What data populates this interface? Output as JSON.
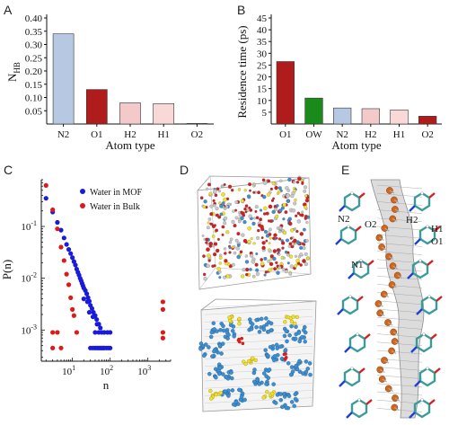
{
  "panels": {
    "a": "A",
    "b": "B",
    "c": "C",
    "d": "D",
    "e": "E"
  },
  "chart_data": [
    {
      "id": "A",
      "type": "bar",
      "categories": [
        "N2",
        "O1",
        "H2",
        "H1",
        "O2"
      ],
      "values": [
        0.34,
        0.13,
        0.08,
        0.077,
        0.002
      ],
      "colors": [
        "#b7c9e2",
        "#b01c1c",
        "#f4c9c9",
        "#f9d8d8",
        "#b01c1c"
      ],
      "xlabel": "Atom type",
      "ylabel": "N",
      "ylabel_sub": "HB",
      "ylim": [
        0,
        0.4
      ],
      "yticks": [
        "0.05",
        "0.10",
        "0.15",
        "0.20",
        "0.25",
        "0.30",
        "0.35",
        "0.40"
      ],
      "grid": false
    },
    {
      "id": "B",
      "type": "bar",
      "categories": [
        "O1",
        "OW",
        "N2",
        "H2",
        "H1",
        "O2"
      ],
      "values": [
        26.5,
        11.0,
        6.8,
        6.5,
        6.0,
        3.3
      ],
      "colors": [
        "#b01c1c",
        "#1a8a1a",
        "#b7c9e2",
        "#f4c9c9",
        "#f9d8d8",
        "#b01c1c"
      ],
      "xlabel": "Atom type",
      "ylabel": "Residence time (ps)",
      "ylim": [
        0,
        45
      ],
      "yticks": [
        "5",
        "10",
        "15",
        "20",
        "25",
        "30",
        "35",
        "40",
        "45"
      ],
      "grid": false
    },
    {
      "id": "C",
      "type": "scatter",
      "xscale": "log",
      "yscale": "log",
      "xlabel": "n",
      "ylabel": "P(n)",
      "xticks": [
        "10",
        "10",
        "10"
      ],
      "xtick_exps": [
        "1",
        "2",
        "3"
      ],
      "yticks": [
        "10",
        "10",
        "10"
      ],
      "ytick_exps": [
        "-1",
        "-2",
        "-3"
      ],
      "xlim": [
        1.5,
        4000
      ],
      "ylim": [
        0.00025,
        0.8
      ],
      "legend_position": "top-right",
      "series": [
        {
          "name": "Water in MOF",
          "color": "#1a1adb",
          "points": [
            [
              2,
              0.35
            ],
            [
              3,
              0.19
            ],
            [
              4,
              0.12
            ],
            [
              5,
              0.085
            ],
            [
              6,
              0.06
            ],
            [
              7,
              0.045
            ],
            [
              8,
              0.036
            ],
            [
              9,
              0.03
            ],
            [
              10,
              0.025
            ],
            [
              11,
              0.021
            ],
            [
              12,
              0.018
            ],
            [
              13,
              0.015
            ],
            [
              14,
              0.013
            ],
            [
              15,
              0.0115
            ],
            [
              16,
              0.01
            ],
            [
              17,
              0.009
            ],
            [
              18,
              0.008
            ],
            [
              19,
              0.0072
            ],
            [
              20,
              0.0065
            ],
            [
              22,
              0.0058
            ],
            [
              24,
              0.005
            ],
            [
              26,
              0.0042
            ],
            [
              28,
              0.0036
            ],
            [
              30,
              0.003
            ],
            [
              33,
              0.0026
            ],
            [
              36,
              0.0022
            ],
            [
              40,
              0.0019
            ],
            [
              44,
              0.0016
            ],
            [
              50,
              0.0013
            ],
            [
              55,
              0.0011
            ],
            [
              60,
              0.0009
            ],
            [
              20,
              0.004
            ],
            [
              25,
              0.0035
            ],
            [
              35,
              0.0018
            ],
            [
              45,
              0.0013
            ],
            [
              28,
              0.0022
            ],
            [
              30,
              0.00045
            ],
            [
              35,
              0.00045
            ],
            [
              40,
              0.00045
            ],
            [
              45,
              0.00045
            ],
            [
              50,
              0.00045
            ],
            [
              55,
              0.00045
            ],
            [
              60,
              0.00045
            ],
            [
              65,
              0.00045
            ],
            [
              70,
              0.00045
            ],
            [
              80,
              0.00045
            ],
            [
              90,
              0.00045
            ],
            [
              100,
              0.00045
            ],
            [
              40,
              0.0009
            ],
            [
              50,
              0.0009
            ],
            [
              70,
              0.0009
            ],
            [
              85,
              0.0009
            ],
            [
              100,
              0.0009
            ]
          ]
        },
        {
          "name": "Water in Bulk",
          "color": "#dd1a1a",
          "points": [
            [
              2,
              0.62
            ],
            [
              3,
              0.21
            ],
            [
              4,
              0.09
            ],
            [
              5,
              0.04
            ],
            [
              6,
              0.022
            ],
            [
              7,
              0.012
            ],
            [
              8,
              0.0075
            ],
            [
              9,
              0.0042
            ],
            [
              10,
              0.0025
            ],
            [
              11,
              0.0019
            ],
            [
              13,
              0.0009
            ],
            [
              4,
              0.0009
            ],
            [
              3,
              0.0009
            ],
            [
              3,
              0.00045
            ],
            [
              5,
              0.00045
            ],
            [
              2500,
              0.0035
            ],
            [
              2500,
              0.0025
            ],
            [
              2500,
              0.0009
            ],
            [
              2500,
              0.0007
            ]
          ]
        }
      ]
    }
  ],
  "panel_e_labels": [
    "N2",
    "O2",
    "H2",
    "H1",
    "O1",
    "N1"
  ],
  "colors": {
    "mof_blue": "#3d8fd0",
    "yellow": "#f2e02a",
    "red": "#d22020",
    "gray": "#c8c8c8",
    "orange": "#d4661a",
    "teal": "#3a9c9a"
  }
}
